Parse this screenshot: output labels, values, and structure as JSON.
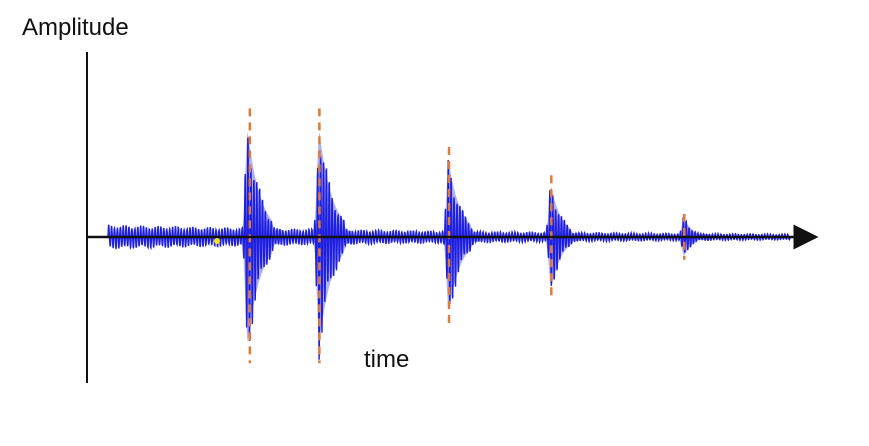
{
  "chart_data": {
    "type": "line",
    "title": "",
    "xlabel": "time",
    "ylabel": "Amplitude",
    "grid": false,
    "legend": "none",
    "xlim": [
      0,
      100
    ],
    "ylim": [
      -1.1,
      1.1
    ],
    "colors": {
      "waveform": "#1f1fe0",
      "peak_markers": "#e07a3c",
      "axes": "#111111",
      "onset_marker": "#f2e21a"
    },
    "series": [
      {
        "background_oscillation_amplitude": 0.1,
        "bursts": [
          {
            "center": 20.5,
            "amplitude": 1.0,
            "width": 3.5
          },
          {
            "center": 31.0,
            "amplitude": 1.0,
            "width": 3.5
          },
          {
            "center": 50.0,
            "amplitude": 0.7,
            "width": 3.2
          },
          {
            "center": 65.0,
            "amplitude": 0.48,
            "width": 2.8
          },
          {
            "center": 84.5,
            "amplitude": 0.18,
            "width": 2.2
          }
        ]
      }
    ],
    "peak_markers": [
      20.8,
      31.0,
      50.0,
      65.0,
      84.5
    ]
  }
}
